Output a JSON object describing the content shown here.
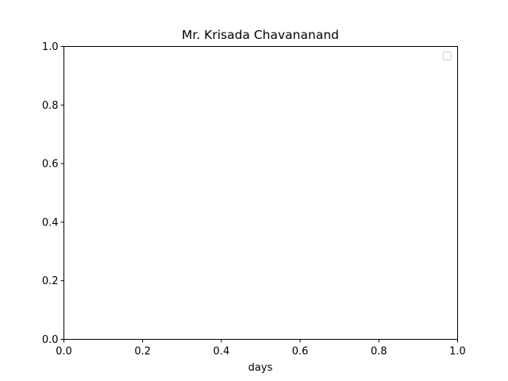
{
  "chart_data": {
    "type": "line",
    "title": "Mr. Krisada Chavananand",
    "xlabel": "days",
    "ylabel": "",
    "xlim": [
      0.0,
      1.0
    ],
    "ylim": [
      0.0,
      1.0
    ],
    "xticks": [
      "0.0",
      "0.2",
      "0.4",
      "0.6",
      "0.8",
      "1.0"
    ],
    "yticks": [
      "0.0",
      "0.2",
      "0.4",
      "0.6",
      "0.8",
      "1.0"
    ],
    "series": [],
    "grid": false,
    "legend": {
      "placement": "top-right",
      "entries": []
    }
  }
}
